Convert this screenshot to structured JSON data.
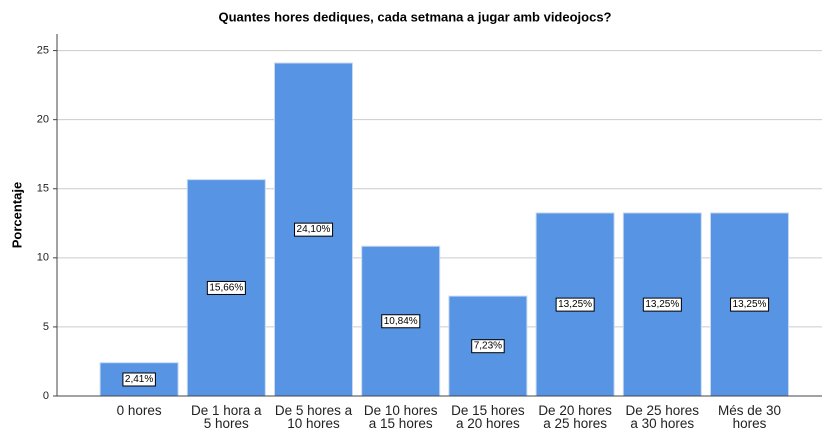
{
  "chart_data": {
    "type": "bar",
    "title": "Quantes hores dediques, cada setmana a jugar amb videojocs?",
    "y_label": "Porcentaje",
    "categories": [
      "0 hores",
      "De 1 hora a 5 hores",
      "De 5 hores a 10 hores",
      "De 10 hores a 15 hores",
      "De 15 hores a 20 hores",
      "De 20 hores a 25 hores",
      "De 25 hores a 30 hores",
      "Més de 30 hores"
    ],
    "values": [
      2.41,
      15.66,
      24.1,
      10.84,
      7.23,
      13.25,
      13.25,
      13.25
    ],
    "value_labels": [
      "2,41%",
      "15,66%",
      "24,10%",
      "10,84%",
      "7,23%",
      "13,25%",
      "13,25%",
      "13,25%"
    ],
    "color": "#5794e4",
    "ylim": [
      0,
      26.2
    ],
    "yticks": [
      0,
      5,
      10,
      15,
      20,
      25
    ],
    "grid": true
  }
}
